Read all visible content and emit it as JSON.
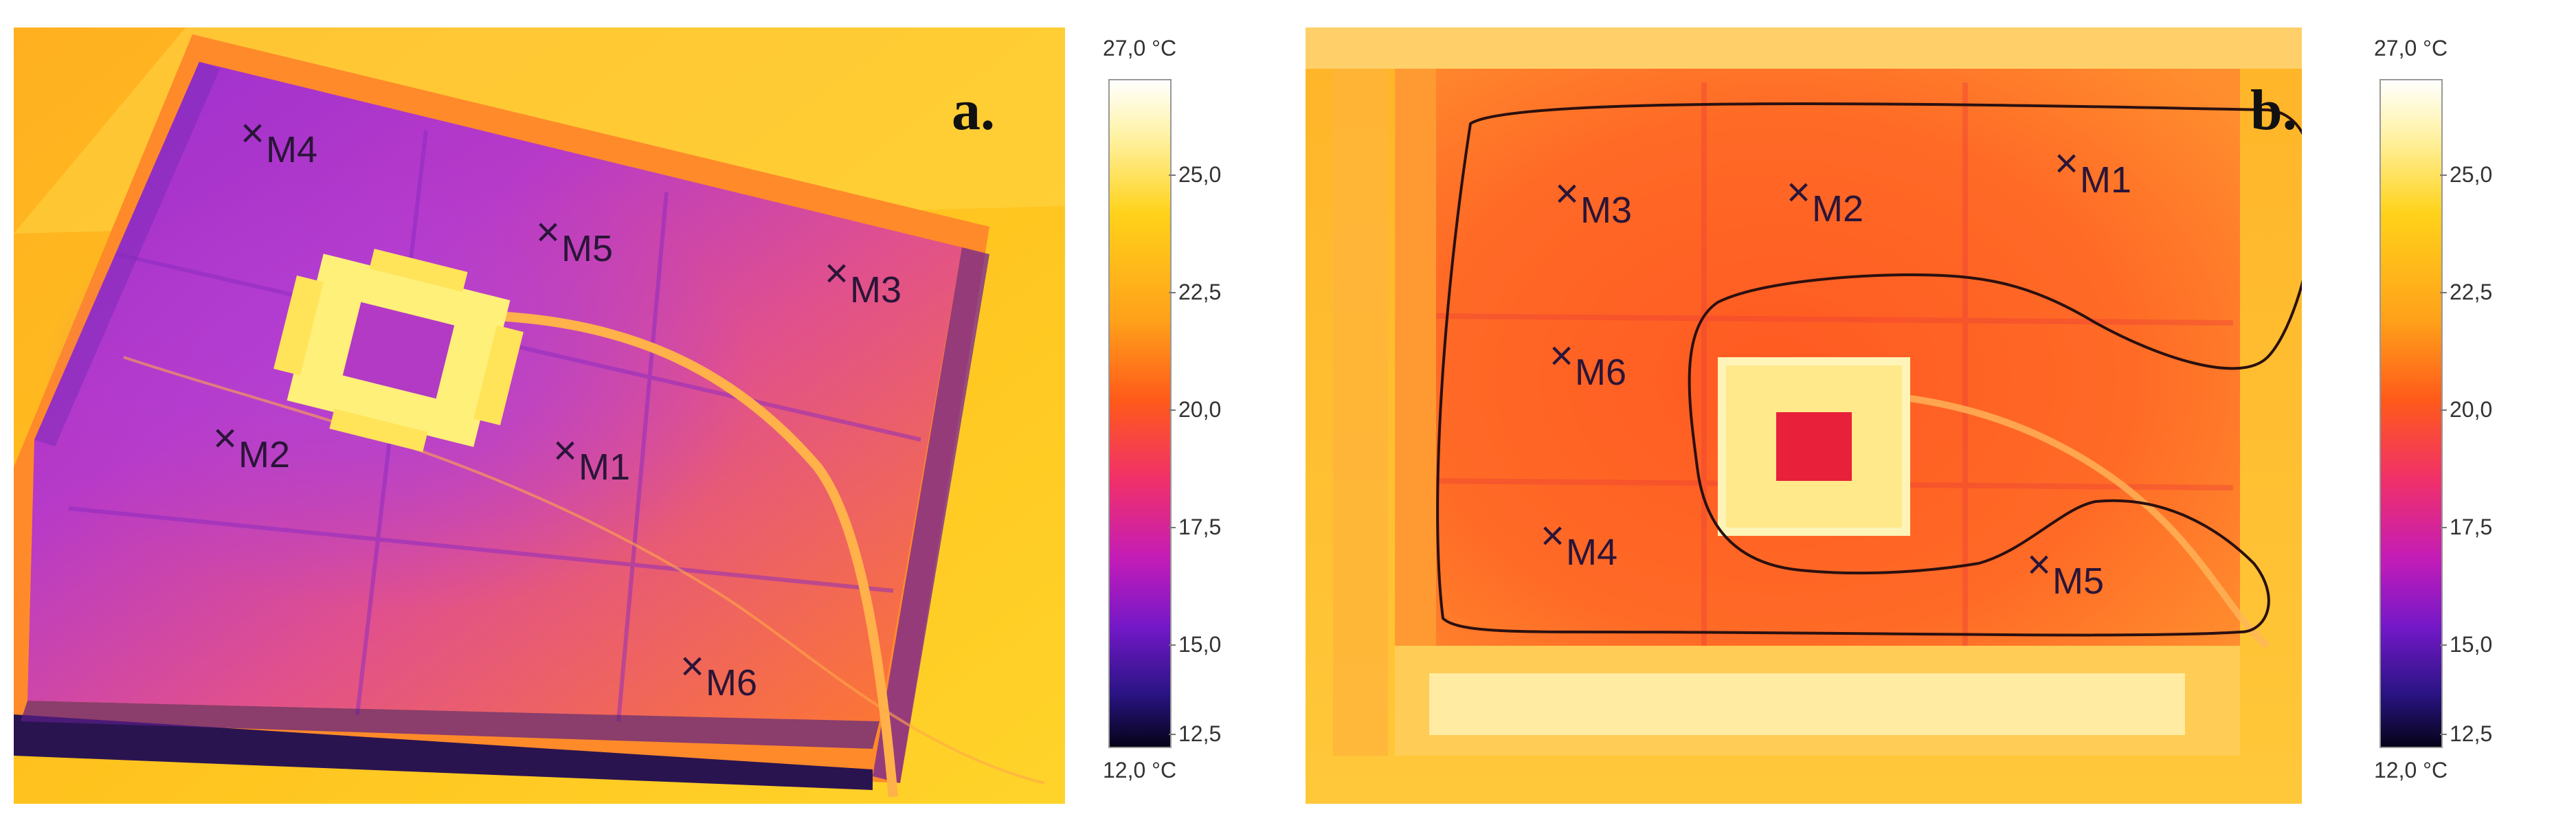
{
  "panels": [
    {
      "letter": "a.",
      "markers": [
        "M1",
        "M2",
        "M3",
        "M4",
        "M5",
        "M6"
      ],
      "scale": {
        "top_limit": "27,0 °C",
        "bottom_limit": "12,0 °C",
        "ticks": [
          "25,0",
          "22,5",
          "20,0",
          "17,5",
          "15,0",
          "12,5"
        ],
        "colors": [
          "#ffffff",
          "#ffd21a",
          "#ff5a1a",
          "#c21cb8",
          "#2a1484",
          "#060318"
        ]
      }
    },
    {
      "letter": "b.",
      "markers": [
        "M1",
        "M2",
        "M3",
        "M4",
        "M5",
        "M6"
      ],
      "scale": {
        "top_limit": "27,0 °C",
        "bottom_limit": "12,0 °C",
        "ticks": [
          "25,0",
          "22,5",
          "20,0",
          "17,5",
          "15,0",
          "12,5"
        ],
        "colors": [
          "#ffffff",
          "#ffd21a",
          "#ff5a1a",
          "#c21cb8",
          "#2a1484",
          "#060318"
        ]
      }
    }
  ]
}
